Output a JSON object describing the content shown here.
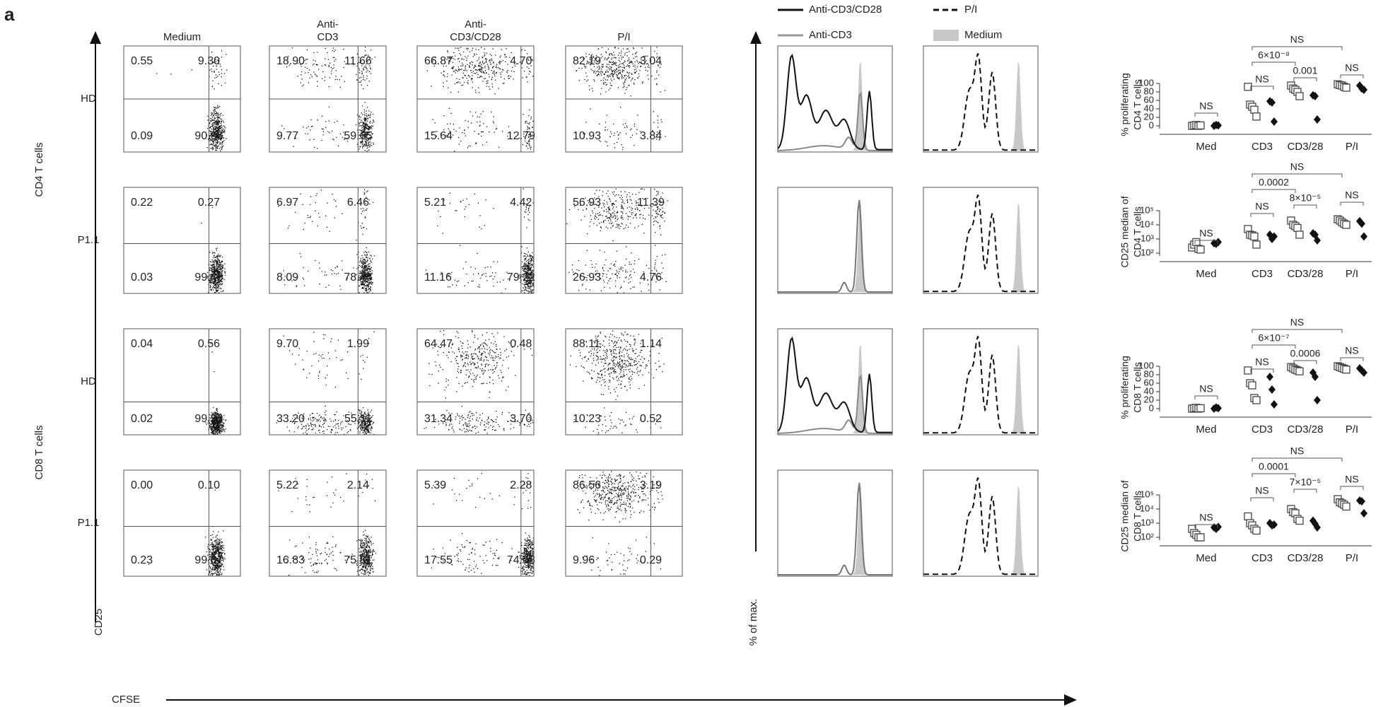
{
  "panel_label": "a",
  "column_headers": [
    [
      "Medium"
    ],
    [
      "Anti-",
      "CD3"
    ],
    [
      "Anti-",
      "CD3/CD28"
    ],
    [
      "P/I"
    ]
  ],
  "row_labels": [
    "HD",
    "P1.1",
    "HD",
    "P1.1"
  ],
  "group_labels": [
    "CD4 T cells",
    "CD8 T cells"
  ],
  "axis_labels": {
    "y": "CD25",
    "x": "CFSE",
    "histogram_y": "% of max."
  },
  "quadrants": [
    [
      [
        "0.55",
        "9.30",
        "0.09",
        "90.06"
      ],
      [
        "18.90",
        "11.66",
        "9.77",
        "59.65"
      ],
      [
        "66.87",
        "4.70",
        "15.64",
        "12.79"
      ],
      [
        "82.19",
        "3.04",
        "10.93",
        "3.84"
      ]
    ],
    [
      [
        "0.22",
        "0.27",
        "0.03",
        "99.48"
      ],
      [
        "6.97",
        "6.46",
        "8.09",
        "78.48"
      ],
      [
        "5.21",
        "4.42",
        "11.16",
        "79.22"
      ],
      [
        "56.93",
        "11.39",
        "26.93",
        "4.76"
      ]
    ],
    [
      [
        "0.04",
        "0.56",
        "0.02",
        "99.38"
      ],
      [
        "9.70",
        "1.99",
        "33.20",
        "55.11"
      ],
      [
        "64.47",
        "0.48",
        "31.34",
        "3.70"
      ],
      [
        "88.11",
        "1.14",
        "10.23",
        "0.52"
      ]
    ],
    [
      [
        "0.00",
        "0.10",
        "0.23",
        "99.67"
      ],
      [
        "5.22",
        "2.14",
        "16.83",
        "75.81"
      ],
      [
        "5.39",
        "2.28",
        "17.55",
        "74.78"
      ],
      [
        "86.56",
        "3.19",
        "9.96",
        "0.29"
      ]
    ]
  ],
  "histogram_legend": [
    "Anti-CD3/CD28",
    "P/I",
    "Anti-CD3",
    "Medium"
  ],
  "chart_data": [
    {
      "type": "scatter",
      "ylabel": [
        "% proliferating",
        "CD4 T cells"
      ],
      "categories": [
        "Med",
        "CD3",
        "CD3/28",
        "P/I"
      ],
      "ylim": [
        0,
        100
      ],
      "yticks": [
        0,
        20,
        40,
        60,
        80,
        100
      ],
      "series": [
        {
          "marker": "square",
          "values": [
            [
              0,
              1,
              2,
              0,
              1
            ],
            [
              92,
              50,
              45,
              38,
              22
            ],
            [
              95,
              88,
              85,
              80,
              70
            ],
            [
              98,
              96,
              95,
              92,
              90
            ]
          ]
        },
        {
          "marker": "diamond",
          "values": [
            [
              0,
              2,
              1
            ],
            [
              58,
              55,
              10
            ],
            [
              72,
              70,
              15
            ],
            [
              95,
              88,
              85
            ]
          ]
        }
      ],
      "annotations": [
        "NS",
        "NS",
        "0.001",
        "NS",
        "6×10⁻⁸",
        "NS"
      ]
    },
    {
      "type": "scatter",
      "log_scale": true,
      "ylabel": [
        "CD25 median of",
        "CD4 T cells"
      ],
      "categories": [
        "Med",
        "CD3",
        "CD3/28",
        "P/I"
      ],
      "ylim": [
        100,
        100000
      ],
      "yticks": [
        {
          "value": 100,
          "label": "10²"
        },
        {
          "value": 1000,
          "label": "10³"
        },
        {
          "value": 10000,
          "label": "10⁴"
        },
        {
          "value": 100000,
          "label": "10⁵"
        }
      ],
      "series": [
        {
          "marker": "square",
          "values": [
            [
              250,
              400,
              600,
              200,
              180
            ],
            [
              5000,
              2000,
              1800,
              1500,
              400
            ],
            [
              20000,
              10000,
              8000,
              6000,
              2000
            ],
            [
              25000,
              20000,
              15000,
              12000,
              10000
            ]
          ]
        },
        {
          "marker": "diamond",
          "values": [
            [
              500,
              450,
              600
            ],
            [
              2000,
              1000,
              1500
            ],
            [
              2500,
              2000,
              800
            ],
            [
              18000,
              12000,
              1500
            ]
          ]
        }
      ],
      "annotations": [
        "NS",
        "NS",
        "8×10⁻⁵",
        "NS",
        "0.0002",
        "NS"
      ]
    },
    {
      "type": "scatter",
      "ylabel": [
        "% proliferating",
        "CD8 T cells"
      ],
      "categories": [
        "Med",
        "CD3",
        "CD3/28",
        "P/I"
      ],
      "ylim": [
        0,
        100
      ],
      "yticks": [
        0,
        20,
        40,
        60,
        80,
        100
      ],
      "series": [
        {
          "marker": "square",
          "values": [
            [
              0,
              1,
              2,
              0,
              1
            ],
            [
              90,
              60,
              55,
              25,
              20
            ],
            [
              98,
              95,
              92,
              90,
              88
            ],
            [
              100,
              98,
              96,
              94,
              92
            ]
          ]
        },
        {
          "marker": "diamond",
          "values": [
            [
              0,
              3,
              1
            ],
            [
              75,
              45,
              10
            ],
            [
              85,
              75,
              20
            ],
            [
              95,
              90,
              85
            ]
          ]
        }
      ],
      "annotations": [
        "NS",
        "NS",
        "0.0006",
        "NS",
        "6×10⁻⁷",
        "NS"
      ]
    },
    {
      "type": "scatter",
      "log_scale": true,
      "ylabel": [
        "CD25 median of",
        "CD8 T cells"
      ],
      "categories": [
        "Med",
        "CD3",
        "CD3/28",
        "P/I"
      ],
      "ylim": [
        100,
        100000
      ],
      "yticks": [
        {
          "value": 100,
          "label": "10²"
        },
        {
          "value": 1000,
          "label": "10³"
        },
        {
          "value": 10000,
          "label": "10⁴"
        },
        {
          "value": 100000,
          "label": "10⁵"
        }
      ],
      "series": [
        {
          "marker": "square",
          "values": [
            [
              400,
              200,
              150,
              60,
              50
            ],
            [
              3000,
              1000,
              700,
              400,
              300
            ],
            [
              10000,
              6000,
              5000,
              2000,
              1500
            ],
            [
              50000,
              30000,
              25000,
              20000,
              15000
            ]
          ]
        },
        {
          "marker": "diamond",
          "values": [
            [
              500,
              400,
              550
            ],
            [
              1000,
              700,
              800
            ],
            [
              1500,
              900,
              500
            ],
            [
              40000,
              35000,
              5000
            ]
          ]
        }
      ],
      "annotations": [
        "NS",
        "NS",
        "7×10⁻⁵",
        "NS",
        "0.0001",
        "NS"
      ]
    }
  ]
}
